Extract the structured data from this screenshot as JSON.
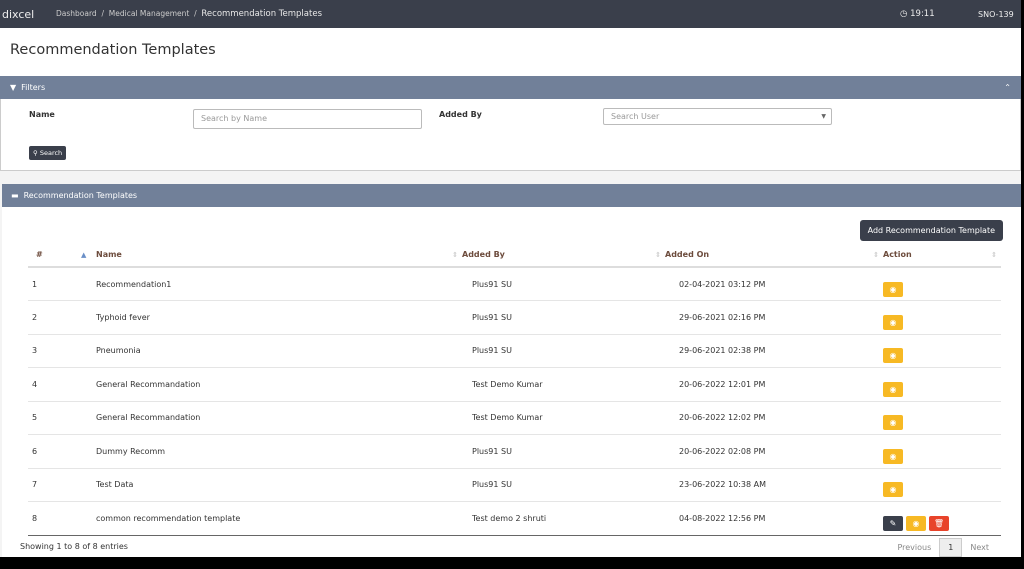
{
  "topbar": {
    "logo": "dixcel",
    "breadcrumb": [
      "Dashboard",
      "Medical Management",
      "Recommendation Templates"
    ],
    "time": "19:11",
    "user": "SNO-139"
  },
  "page_title": "Recommendation Templates",
  "filters": {
    "title": "Filters",
    "name_label": "Name",
    "name_placeholder": "Search by Name",
    "added_by_label": "Added By",
    "user_placeholder": "Search User",
    "search_label": "Search"
  },
  "table_panel": {
    "title": "Recommendation Templates",
    "add_label": "Add Recommendation Template",
    "columns": [
      "#",
      "Name",
      "Added By",
      "Added On",
      "Action"
    ],
    "rows": [
      {
        "n": "1",
        "name": "Recommendation1",
        "by": "Plus91 SU",
        "on": "02-04-2021 03:12 PM",
        "actions": [
          "view"
        ]
      },
      {
        "n": "2",
        "name": "Typhoid fever",
        "by": "Plus91 SU",
        "on": "29-06-2021 02:16 PM",
        "actions": [
          "view"
        ]
      },
      {
        "n": "3",
        "name": "Pneumonia",
        "by": "Plus91 SU",
        "on": "29-06-2021 02:38 PM",
        "actions": [
          "view"
        ]
      },
      {
        "n": "4",
        "name": "General Recommandation",
        "by": "Test Demo Kumar",
        "on": "20-06-2022 12:01 PM",
        "actions": [
          "view"
        ]
      },
      {
        "n": "5",
        "name": "General Recommandation",
        "by": "Test Demo Kumar",
        "on": "20-06-2022 12:02 PM",
        "actions": [
          "view"
        ]
      },
      {
        "n": "6",
        "name": "Dummy Recomm",
        "by": "Plus91 SU",
        "on": "20-06-2022 02:08 PM",
        "actions": [
          "view"
        ]
      },
      {
        "n": "7",
        "name": "Test Data",
        "by": "Plus91 SU",
        "on": "23-06-2022 10:38 AM",
        "actions": [
          "view"
        ]
      },
      {
        "n": "8",
        "name": "common recommendation template",
        "by": "Test demo 2 shruti",
        "on": "04-08-2022 12:56 PM",
        "actions": [
          "edit",
          "view",
          "delete"
        ]
      }
    ],
    "info": "Showing 1 to 8 of 8 entries",
    "prev": "Previous",
    "page": "1",
    "next": "Next"
  }
}
